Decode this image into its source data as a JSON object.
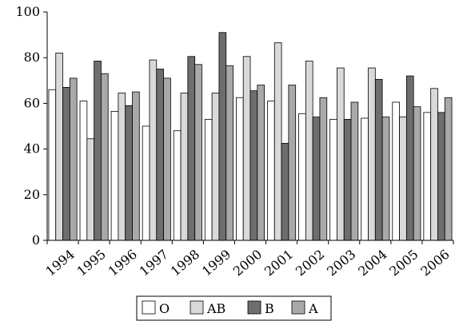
{
  "chart_data": {
    "type": "bar",
    "categories": [
      "1994",
      "1995",
      "1996",
      "1997",
      "1998",
      "1999",
      "2000",
      "2001",
      "2002",
      "2003",
      "2004",
      "2005",
      "2006"
    ],
    "series": [
      {
        "name": "O",
        "color": "#ffffff",
        "values": [
          66,
          61,
          56.5,
          50,
          48,
          53,
          62.5,
          61,
          55.5,
          53,
          53.5,
          60.5,
          56
        ]
      },
      {
        "name": "AB",
        "color": "#d9d9d9",
        "values": [
          82,
          44.5,
          64.5,
          79,
          64.5,
          64.5,
          80.5,
          86.5,
          78.5,
          75.5,
          75.5,
          54,
          66.5
        ]
      },
      {
        "name": "B",
        "color": "#6e6e6e",
        "values": [
          67,
          78.5,
          59,
          75,
          80.5,
          91,
          65.5,
          42.5,
          54,
          53,
          70.5,
          72,
          56
        ]
      },
      {
        "name": "A",
        "color": "#a9a9a9",
        "values": [
          71,
          73,
          65,
          71,
          77,
          76.5,
          68,
          68,
          62.5,
          60.5,
          54,
          58.5,
          62.5
        ]
      }
    ],
    "y_ticks": [
      "0",
      "20",
      "40",
      "60",
      "80",
      "100"
    ],
    "ylim": [
      0,
      100
    ],
    "grid": false,
    "legend_position": "bottom-center"
  }
}
